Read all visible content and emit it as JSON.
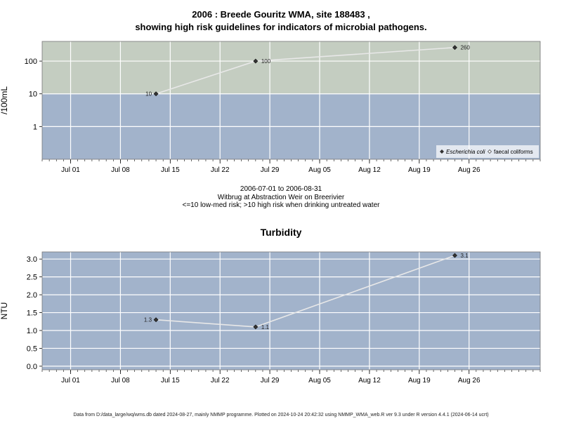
{
  "page": {
    "title_line1": "2006 : Breede Gouritz WMA, site 188483 ,",
    "title_line2": "showing high risk guidelines for indicators of microbial pathogens.",
    "caption_line1": "2006-07-01 to 2006-08-31",
    "caption_line2": "Witbrug at Abstraction Weir on Breerivier",
    "caption_line3": "<=10 low-med risk; >10 high risk when drinking untreated water",
    "turbidity_title": "Turbidity",
    "footer": "Data from D:/data_large/wq/wms.db dated 2024-08-27, mainly NMMP programme. Plotted on 2024-10-24 20:42:32 using NMMP_WMA_web.R ver 9.3 under R version 4.4.1 (2024-06-14 ucrt)"
  },
  "colors": {
    "high_risk_band": "#c4cdc1",
    "low_risk_band": "#a2b3cb",
    "panel_bg": "#a2b3cb",
    "grid": "#ffffff",
    "line": "#e8e8e8",
    "point": "#333333"
  },
  "chart_data": [
    {
      "id": "microbial",
      "type": "line",
      "title": "",
      "ylabel": "/100mL",
      "yscale": "log",
      "ylim": [
        0.1,
        400
      ],
      "yticks": [
        1,
        10,
        100
      ],
      "ytick_labels": [
        "1",
        "10",
        "100"
      ],
      "threshold": 10,
      "xlim": [
        "2006-06-27",
        "2006-09-05"
      ],
      "xticks": [
        "2006-07-01",
        "2006-07-08",
        "2006-07-15",
        "2006-07-22",
        "2006-07-29",
        "2006-08-05",
        "2006-08-12",
        "2006-08-19",
        "2006-08-26"
      ],
      "xtick_labels": [
        "Jul 01",
        "Jul 08",
        "Jul 15",
        "Jul 22",
        "Jul 29",
        "Aug 05",
        "Aug 12",
        "Aug 19",
        "Aug 26"
      ],
      "grid": true,
      "legend_position": "bottom-right",
      "legend": [
        {
          "label": "Escherichia coli",
          "marker": "filled-diamond",
          "italic": true
        },
        {
          "label": "faecal coliforms",
          "marker": "open-diamond",
          "italic": false
        }
      ],
      "series": [
        {
          "name": "Escherichia coli",
          "x": [
            "2006-07-13",
            "2006-07-27",
            "2006-08-24"
          ],
          "y": [
            10,
            100,
            260
          ],
          "labels": [
            "10",
            "100",
            "260"
          ],
          "label_side": [
            "left",
            "right",
            "right"
          ]
        }
      ]
    },
    {
      "id": "turbidity",
      "type": "line",
      "title": "Turbidity",
      "ylabel": "NTU",
      "yscale": "linear",
      "ylim": [
        -0.1,
        3.2
      ],
      "yticks": [
        0,
        0.5,
        1,
        1.5,
        2,
        2.5,
        3
      ],
      "ytick_labels": [
        "0.0",
        "0.5",
        "1.0",
        "1.5",
        "2.0",
        "2.5",
        "3.0"
      ],
      "xlim": [
        "2006-06-27",
        "2006-09-05"
      ],
      "xticks": [
        "2006-07-01",
        "2006-07-08",
        "2006-07-15",
        "2006-07-22",
        "2006-07-29",
        "2006-08-05",
        "2006-08-12",
        "2006-08-19",
        "2006-08-26"
      ],
      "xtick_labels": [
        "Jul 01",
        "Jul 08",
        "Jul 15",
        "Jul 22",
        "Jul 29",
        "Aug 05",
        "Aug 12",
        "Aug 19",
        "Aug 26"
      ],
      "grid": true,
      "series": [
        {
          "name": "",
          "x": [
            "2006-07-13",
            "2006-07-27",
            "2006-08-24"
          ],
          "y": [
            1.3,
            1.1,
            3.1
          ],
          "labels": [
            "1.3",
            "1.1",
            "3.1"
          ],
          "label_side": [
            "left",
            "right",
            "right"
          ]
        }
      ]
    }
  ]
}
